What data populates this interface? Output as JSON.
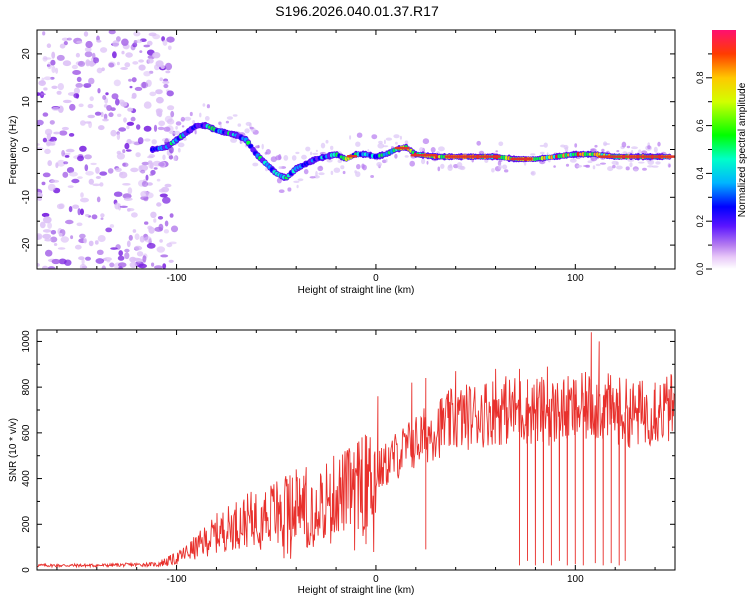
{
  "title": "S196.2026.040.01.37.R17",
  "colors": {
    "snr_line": "#e8302c",
    "frame": "#000000",
    "center_band": "#e0362a"
  },
  "chart_data": [
    {
      "type": "heatmap",
      "name": "spectrogram",
      "xlabel": "Height of straight line (km)",
      "ylabel": "Frequency (Hz)",
      "xlim": [
        -170,
        150
      ],
      "ylim": [
        -25,
        25
      ],
      "x_ticks": [
        -100,
        0,
        100
      ],
      "x_tick_labels": [
        "-100",
        "0",
        "100"
      ],
      "y_ticks": [
        -20,
        -10,
        0,
        10,
        20
      ],
      "y_tick_labels": [
        "-20",
        "-10",
        "0",
        "10",
        "20"
      ],
      "colorbar": {
        "label": "Normalized spectral amplitude",
        "range": [
          0,
          1
        ],
        "ticks": [
          0.0,
          0.2,
          0.4,
          0.6,
          0.8
        ],
        "tick_labels": [
          "0.0",
          "0.2",
          "0.4",
          "0.6",
          "0.8"
        ]
      },
      "ridge_frequency_track": {
        "x": [
          -112,
          -105,
          -100,
          -95,
          -90,
          -85,
          -80,
          -75,
          -70,
          -65,
          -60,
          -55,
          -50,
          -45,
          -40,
          -35,
          -30,
          -25,
          -20,
          -15,
          -10,
          -5,
          0,
          5,
          10,
          15,
          20,
          30,
          40,
          50,
          60,
          70,
          80,
          90,
          100,
          110,
          120,
          130,
          140,
          148
        ],
        "y": [
          0,
          0.5,
          2,
          3.5,
          5,
          5,
          4,
          3.5,
          3,
          2,
          -1,
          -3,
          -5,
          -6,
          -4,
          -3,
          -2,
          -1.5,
          -1,
          -2,
          -1,
          -1,
          -1.5,
          -1,
          0,
          0.5,
          -1,
          -1.5,
          -1.5,
          -1.5,
          -1.5,
          -2,
          -2,
          -1.5,
          -1,
          -1,
          -1.5,
          -1.5,
          -1.5,
          -1.5
        ]
      },
      "noise_region_x": [
        -170,
        -105
      ]
    },
    {
      "type": "line",
      "name": "snr",
      "xlabel": "Height of straight line (km)",
      "ylabel": "SNR (10 * v/v)",
      "xlim": [
        -170,
        150
      ],
      "ylim": [
        0,
        1050
      ],
      "x_ticks": [
        -100,
        0,
        100
      ],
      "x_tick_labels": [
        "-100",
        "0",
        "100"
      ],
      "y_ticks": [
        0,
        200,
        400,
        600,
        800,
        1000
      ],
      "y_tick_labels": [
        "0",
        "200",
        "400",
        "600",
        "800",
        "1000"
      ],
      "envelope": {
        "x": [
          -170,
          -140,
          -110,
          -100,
          -90,
          -80,
          -70,
          -60,
          -50,
          -40,
          -30,
          -20,
          -10,
          0,
          10,
          20,
          30,
          40,
          50,
          60,
          70,
          80,
          90,
          100,
          110,
          120,
          130,
          140,
          150
        ],
        "y": [
          20,
          20,
          25,
          50,
          100,
          160,
          200,
          230,
          260,
          280,
          300,
          330,
          360,
          420,
          500,
          560,
          620,
          660,
          680,
          700,
          700,
          700,
          690,
          700,
          720,
          700,
          680,
          700,
          710
        ]
      },
      "spikes": [
        {
          "x": -48,
          "y": 330
        },
        {
          "x": -40,
          "y": 440
        },
        {
          "x": -35,
          "y": 450
        },
        {
          "x": -14,
          "y": 480
        },
        {
          "x": -7,
          "y": 580
        },
        {
          "x": 1,
          "y": 760
        },
        {
          "x": 18,
          "y": 820
        },
        {
          "x": 25,
          "y": 840
        },
        {
          "x": 40,
          "y": 870
        },
        {
          "x": 60,
          "y": 880
        },
        {
          "x": 72,
          "y": 880
        },
        {
          "x": 86,
          "y": 890
        },
        {
          "x": 108,
          "y": 1040
        },
        {
          "x": 112,
          "y": 1000
        },
        {
          "x": 140,
          "y": 820
        },
        {
          "x": 147,
          "y": 790
        }
      ],
      "dropouts": [
        {
          "x": 25,
          "y": 90
        },
        {
          "x": 72,
          "y": 20
        },
        {
          "x": 76,
          "y": 40
        },
        {
          "x": 80,
          "y": 20
        },
        {
          "x": 84,
          "y": 30
        },
        {
          "x": 88,
          "y": 20
        },
        {
          "x": 92,
          "y": 40
        },
        {
          "x": 96,
          "y": 20
        },
        {
          "x": 100,
          "y": 25
        },
        {
          "x": 104,
          "y": 20
        },
        {
          "x": 110,
          "y": 30
        },
        {
          "x": 114,
          "y": 20
        },
        {
          "x": 118,
          "y": 30
        },
        {
          "x": 122,
          "y": 20
        },
        {
          "x": 125,
          "y": 40
        }
      ]
    }
  ]
}
